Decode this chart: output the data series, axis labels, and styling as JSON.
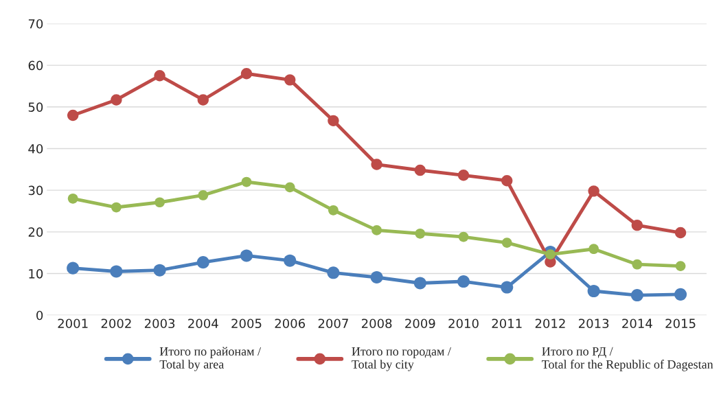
{
  "chart_data": {
    "type": "line",
    "categories": [
      "2001",
      "2002",
      "2003",
      "2004",
      "2005",
      "2006",
      "2007",
      "2008",
      "2009",
      "2010",
      "2011",
      "2012",
      "2013",
      "2014",
      "2015"
    ],
    "series": [
      {
        "name": "Итого по районам / Total by area",
        "color": "#4a7ebb",
        "values": [
          11.3,
          10.5,
          10.8,
          12.7,
          14.3,
          13.1,
          10.2,
          9.1,
          7.7,
          8.1,
          6.7,
          15.2,
          5.8,
          4.8,
          5.0
        ]
      },
      {
        "name": "Итого по городам / Total by city",
        "color": "#be4b48",
        "values": [
          48,
          51.7,
          57.5,
          51.7,
          58,
          56.5,
          46.7,
          36.2,
          34.8,
          33.6,
          32.3,
          12.8,
          29.8,
          21.6,
          19.8
        ]
      },
      {
        "name": "Итого по РД / Total for the Republic of Dagestan",
        "color": "#98b954",
        "values": [
          28,
          25.9,
          27.1,
          28.8,
          32,
          30.7,
          25.2,
          20.4,
          19.6,
          18.8,
          17.4,
          14.6,
          15.9,
          12.2,
          11.8
        ]
      }
    ],
    "ylim": [
      0,
      70
    ],
    "yticks": [
      0,
      10,
      20,
      30,
      40,
      50,
      60,
      70
    ],
    "grid": "y",
    "legend": "bottom",
    "marker": "circle",
    "line_style": "solid"
  }
}
